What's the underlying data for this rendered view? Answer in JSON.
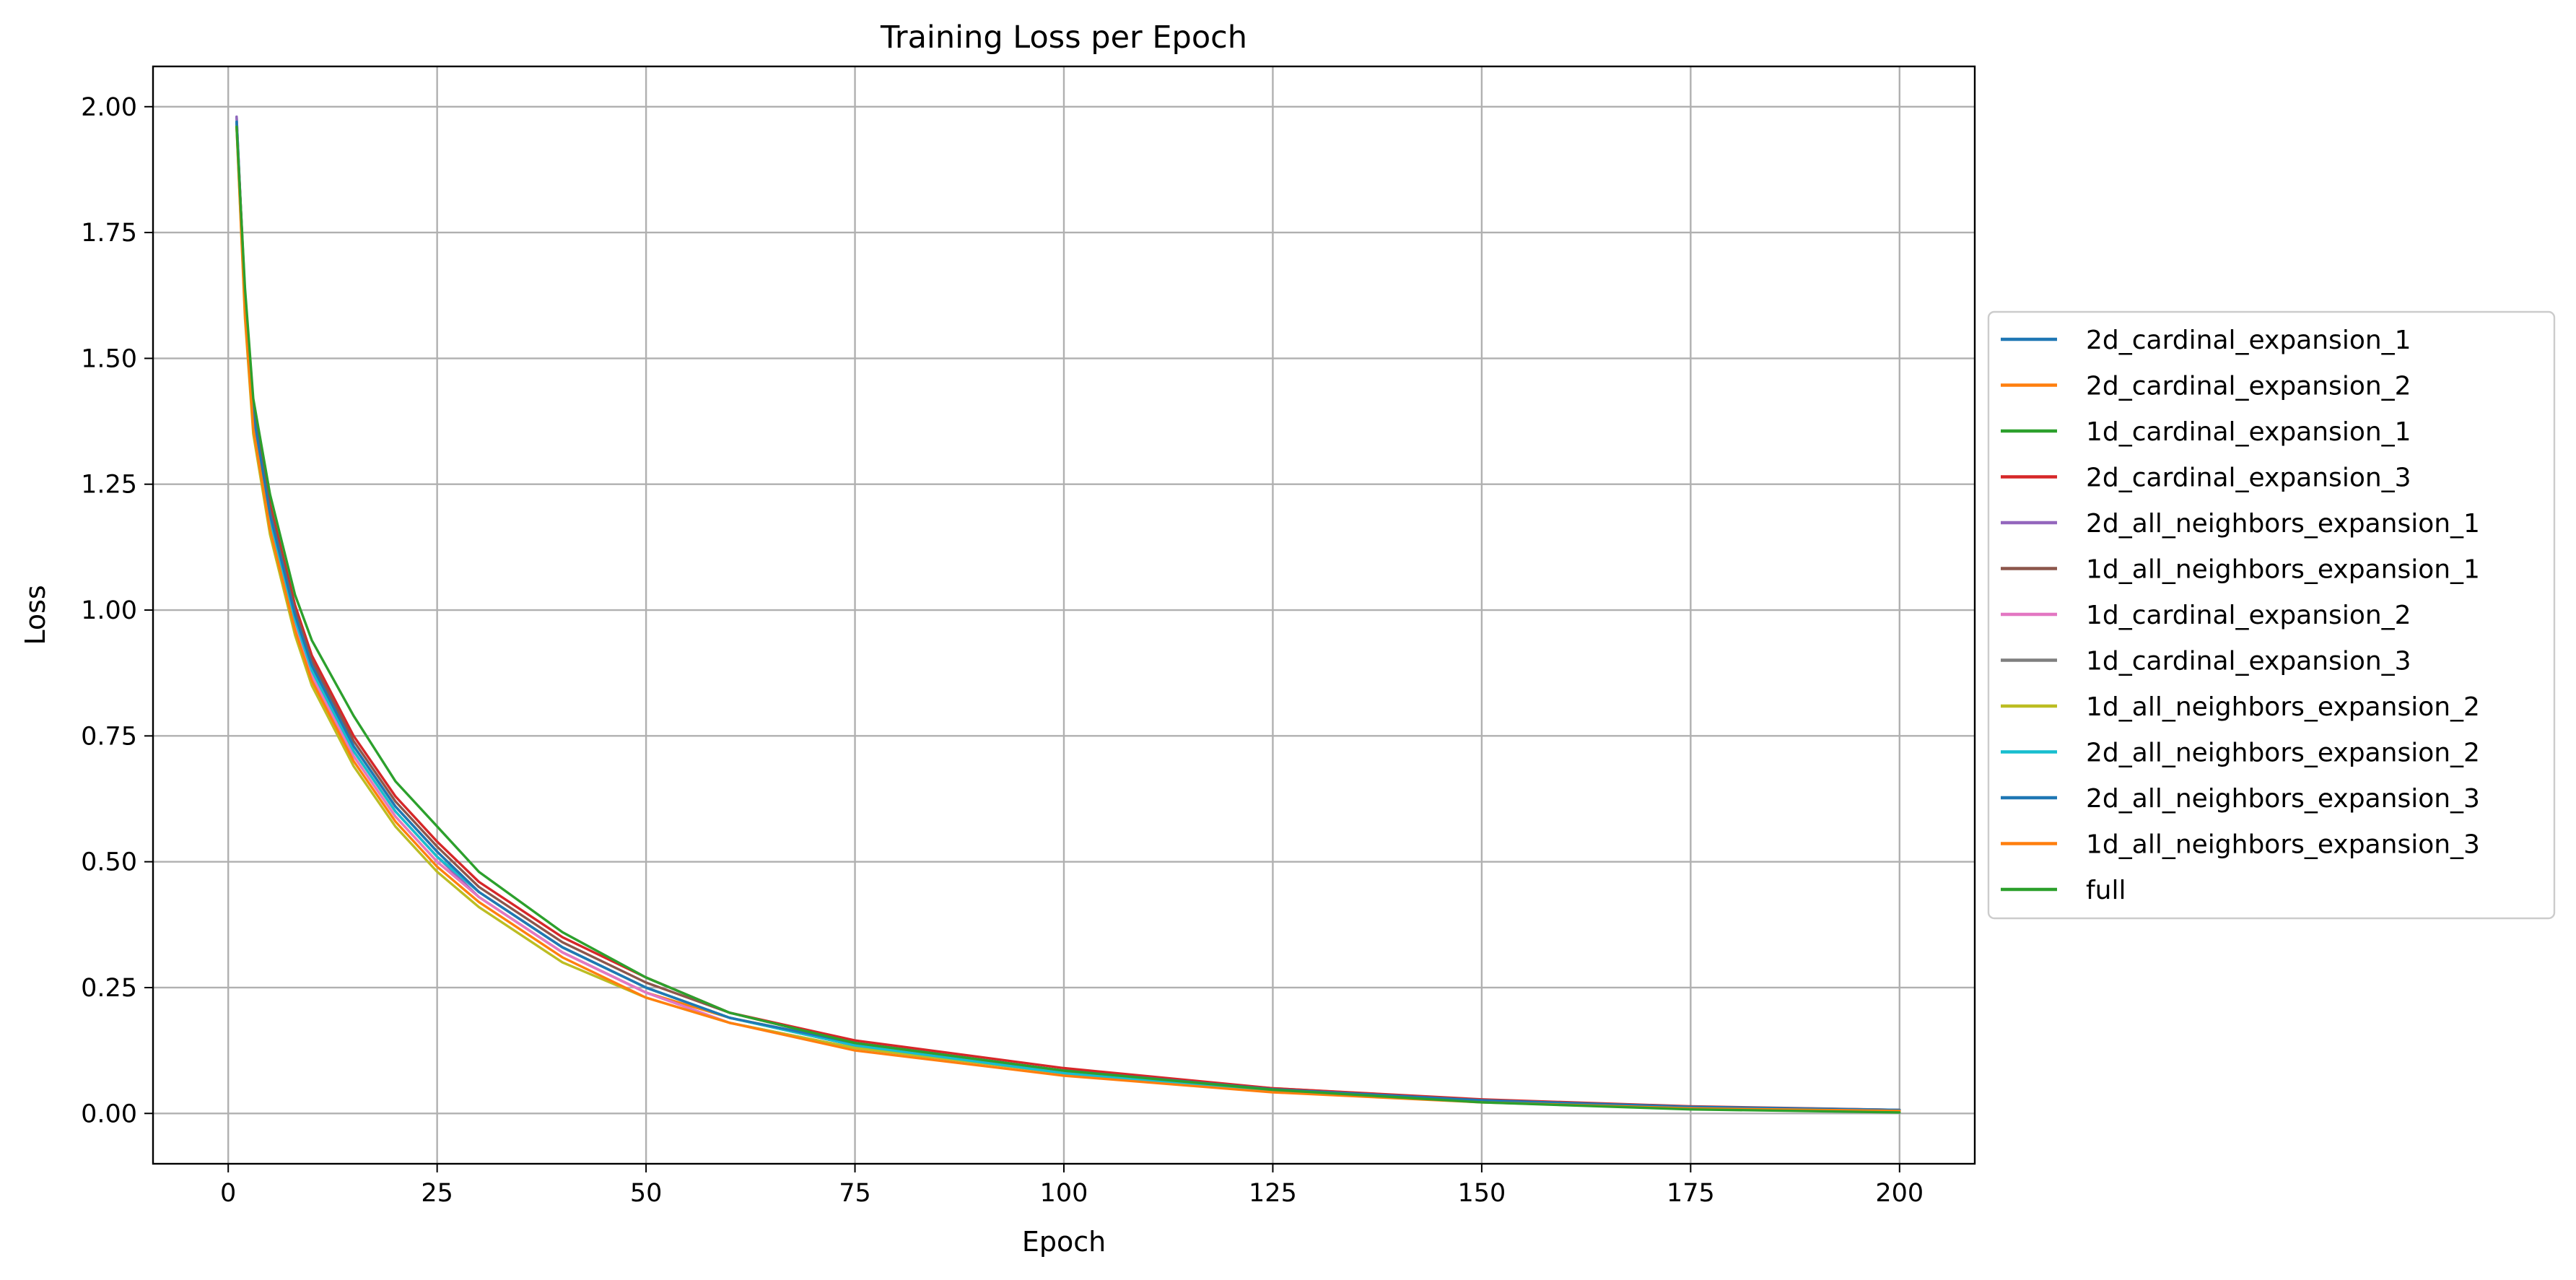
{
  "chart_data": {
    "type": "line",
    "title": "Training Loss per Epoch",
    "xlabel": "Epoch",
    "ylabel": "Loss",
    "xlim": [
      -9,
      209
    ],
    "ylim": [
      -0.1,
      2.08
    ],
    "x_ticks": [
      0,
      25,
      50,
      75,
      100,
      125,
      150,
      175,
      200
    ],
    "y_ticks": [
      0.0,
      0.25,
      0.5,
      0.75,
      1.0,
      1.25,
      1.5,
      1.75,
      2.0
    ],
    "x_tick_labels": [
      "0",
      "25",
      "50",
      "75",
      "100",
      "125",
      "150",
      "175",
      "200"
    ],
    "y_tick_labels": [
      "0.00",
      "0.25",
      "0.50",
      "0.75",
      "1.00",
      "1.25",
      "1.50",
      "1.75",
      "2.00"
    ],
    "grid": true,
    "legend_position": "center-right-outside",
    "x": [
      1,
      2,
      3,
      5,
      8,
      10,
      15,
      20,
      25,
      30,
      40,
      50,
      60,
      75,
      100,
      125,
      150,
      175,
      200
    ],
    "series": [
      {
        "name": "2d_cardinal_expansion_1",
        "color": "#1f77b4",
        "values": [
          1.98,
          1.62,
          1.39,
          1.19,
          0.99,
          0.89,
          0.73,
          0.61,
          0.52,
          0.44,
          0.33,
          0.25,
          0.19,
          0.135,
          0.08,
          0.045,
          0.025,
          0.012,
          0.006
        ]
      },
      {
        "name": "2d_cardinal_expansion_2",
        "color": "#ff7f0e",
        "values": [
          1.97,
          1.6,
          1.37,
          1.17,
          0.97,
          0.87,
          0.71,
          0.59,
          0.5,
          0.43,
          0.32,
          0.24,
          0.19,
          0.14,
          0.085,
          0.05,
          0.027,
          0.013,
          0.007
        ]
      },
      {
        "name": "1d_cardinal_expansion_1",
        "color": "#2ca02c",
        "values": [
          1.97,
          1.61,
          1.38,
          1.18,
          0.98,
          0.88,
          0.72,
          0.6,
          0.51,
          0.44,
          0.33,
          0.25,
          0.19,
          0.135,
          0.08,
          0.045,
          0.024,
          0.011,
          0.005
        ]
      },
      {
        "name": "2d_cardinal_expansion_3",
        "color": "#d62728",
        "values": [
          1.97,
          1.63,
          1.4,
          1.21,
          1.01,
          0.91,
          0.75,
          0.63,
          0.54,
          0.46,
          0.35,
          0.27,
          0.2,
          0.145,
          0.09,
          0.05,
          0.028,
          0.014,
          0.007
        ]
      },
      {
        "name": "2d_all_neighbors_expansion_1",
        "color": "#9467bd",
        "values": [
          1.98,
          1.61,
          1.38,
          1.18,
          0.98,
          0.88,
          0.72,
          0.6,
          0.51,
          0.43,
          0.32,
          0.24,
          0.18,
          0.13,
          0.08,
          0.045,
          0.024,
          0.012,
          0.006
        ]
      },
      {
        "name": "1d_all_neighbors_expansion_1",
        "color": "#8c564b",
        "values": [
          1.97,
          1.62,
          1.39,
          1.2,
          1.0,
          0.9,
          0.74,
          0.62,
          0.53,
          0.45,
          0.34,
          0.26,
          0.2,
          0.14,
          0.085,
          0.048,
          0.026,
          0.013,
          0.006
        ]
      },
      {
        "name": "1d_cardinal_expansion_2",
        "color": "#e377c2",
        "values": [
          1.97,
          1.6,
          1.37,
          1.17,
          0.97,
          0.87,
          0.71,
          0.59,
          0.5,
          0.43,
          0.32,
          0.24,
          0.18,
          0.13,
          0.08,
          0.045,
          0.024,
          0.012,
          0.006
        ]
      },
      {
        "name": "1d_cardinal_expansion_3",
        "color": "#7f7f7f",
        "values": [
          1.97,
          1.61,
          1.38,
          1.19,
          0.99,
          0.89,
          0.73,
          0.61,
          0.52,
          0.44,
          0.33,
          0.25,
          0.19,
          0.135,
          0.082,
          0.046,
          0.025,
          0.012,
          0.006
        ]
      },
      {
        "name": "1d_all_neighbors_expansion_2",
        "color": "#bcbd22",
        "values": [
          1.96,
          1.58,
          1.35,
          1.15,
          0.95,
          0.85,
          0.69,
          0.57,
          0.48,
          0.41,
          0.3,
          0.23,
          0.18,
          0.13,
          0.08,
          0.044,
          0.023,
          0.011,
          0.005
        ]
      },
      {
        "name": "2d_all_neighbors_expansion_2",
        "color": "#17becf",
        "values": [
          1.97,
          1.61,
          1.38,
          1.18,
          0.98,
          0.88,
          0.72,
          0.6,
          0.51,
          0.44,
          0.33,
          0.25,
          0.19,
          0.135,
          0.08,
          0.045,
          0.024,
          0.012,
          0.006
        ]
      },
      {
        "name": "2d_all_neighbors_expansion_3",
        "color": "#1f77b4",
        "values": [
          1.97,
          1.62,
          1.39,
          1.19,
          0.99,
          0.89,
          0.73,
          0.61,
          0.52,
          0.44,
          0.33,
          0.25,
          0.19,
          0.14,
          0.085,
          0.048,
          0.026,
          0.013,
          0.007
        ]
      },
      {
        "name": "1d_all_neighbors_expansion_3",
        "color": "#ff7f0e",
        "values": [
          1.96,
          1.59,
          1.36,
          1.16,
          0.96,
          0.86,
          0.7,
          0.58,
          0.49,
          0.42,
          0.31,
          0.23,
          0.18,
          0.125,
          0.075,
          0.042,
          0.022,
          0.01,
          0.005
        ]
      },
      {
        "name": "full",
        "color": "#2ca02c",
        "values": [
          1.96,
          1.64,
          1.42,
          1.23,
          1.03,
          0.94,
          0.79,
          0.66,
          0.57,
          0.48,
          0.36,
          0.27,
          0.2,
          0.14,
          0.085,
          0.047,
          0.022,
          0.008,
          0.002
        ]
      }
    ]
  }
}
